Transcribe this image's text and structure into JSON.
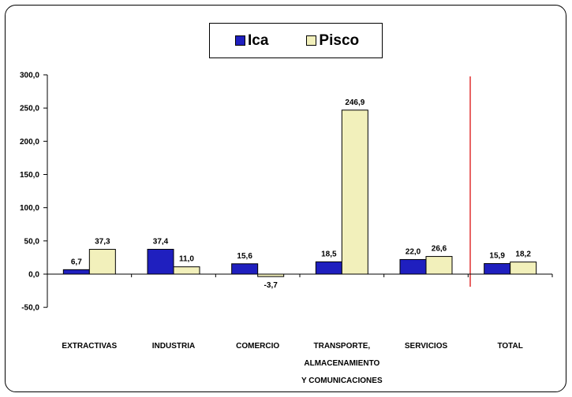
{
  "chart_data": {
    "type": "bar",
    "title": "",
    "xlabel": "",
    "ylabel": "",
    "categories": [
      [
        "EXTRACTIVAS"
      ],
      [
        "INDUSTRIA"
      ],
      [
        "COMERCIO"
      ],
      [
        "TRANSPORTE,",
        "ALMACENAMIENTO",
        "Y COMUNICACIONES"
      ],
      [
        "SERVICIOS"
      ],
      [
        "TOTAL"
      ]
    ],
    "series": [
      {
        "name": "Ica",
        "color": "#1f1fbf",
        "values": [
          6.7,
          37.4,
          15.6,
          18.5,
          22.0,
          15.9
        ],
        "labels": [
          "6,7",
          "37,4",
          "15,6",
          "18,5",
          "22,0",
          "15,9"
        ]
      },
      {
        "name": "Pisco",
        "color": "#f2f0bb",
        "values": [
          37.3,
          11.0,
          -3.7,
          246.9,
          26.6,
          18.2
        ],
        "labels": [
          "37,3",
          "11,0",
          "-3,7",
          "246,9",
          "26,6",
          "18,2"
        ]
      }
    ],
    "ylim": [
      -50,
      300
    ],
    "yticks": [
      300,
      250,
      200,
      150,
      100,
      50,
      0,
      -50
    ],
    "ytick_labels": [
      "300,0",
      "250,0",
      "200,0",
      "150,0",
      "100,0",
      "50,0",
      "0,0",
      "-50,0"
    ],
    "legend_position": "top-center",
    "grid": false,
    "separator_color": "#e03030"
  }
}
